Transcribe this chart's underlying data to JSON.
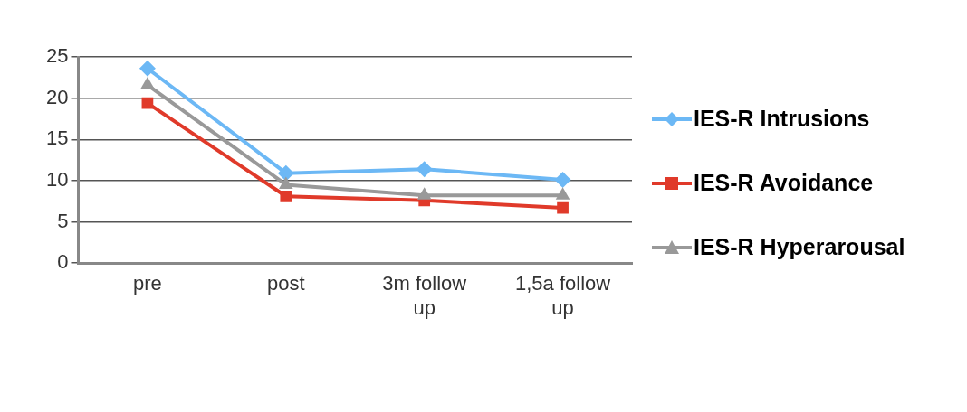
{
  "chart_data": {
    "type": "line",
    "categories": [
      "pre",
      "post",
      "3m follow up",
      "1,5a follow up"
    ],
    "series": [
      {
        "name": "IES-R Intrusions",
        "color": "#6cb8f5",
        "marker": "diamond",
        "values": [
          23.6,
          10.9,
          11.4,
          10.1
        ]
      },
      {
        "name": "IES-R Avoidance",
        "color": "#e03a2a",
        "marker": "square",
        "values": [
          19.4,
          8.1,
          7.6,
          6.7
        ]
      },
      {
        "name": "IES-R Hyperarousal",
        "color": "#999999",
        "marker": "triangle",
        "values": [
          21.6,
          9.5,
          8.2,
          8.2
        ]
      }
    ],
    "ylim": [
      0,
      25
    ],
    "yticks": [
      0,
      5,
      10,
      15,
      20,
      25
    ],
    "grid": "y",
    "legend": "right",
    "line_style": "solid"
  }
}
